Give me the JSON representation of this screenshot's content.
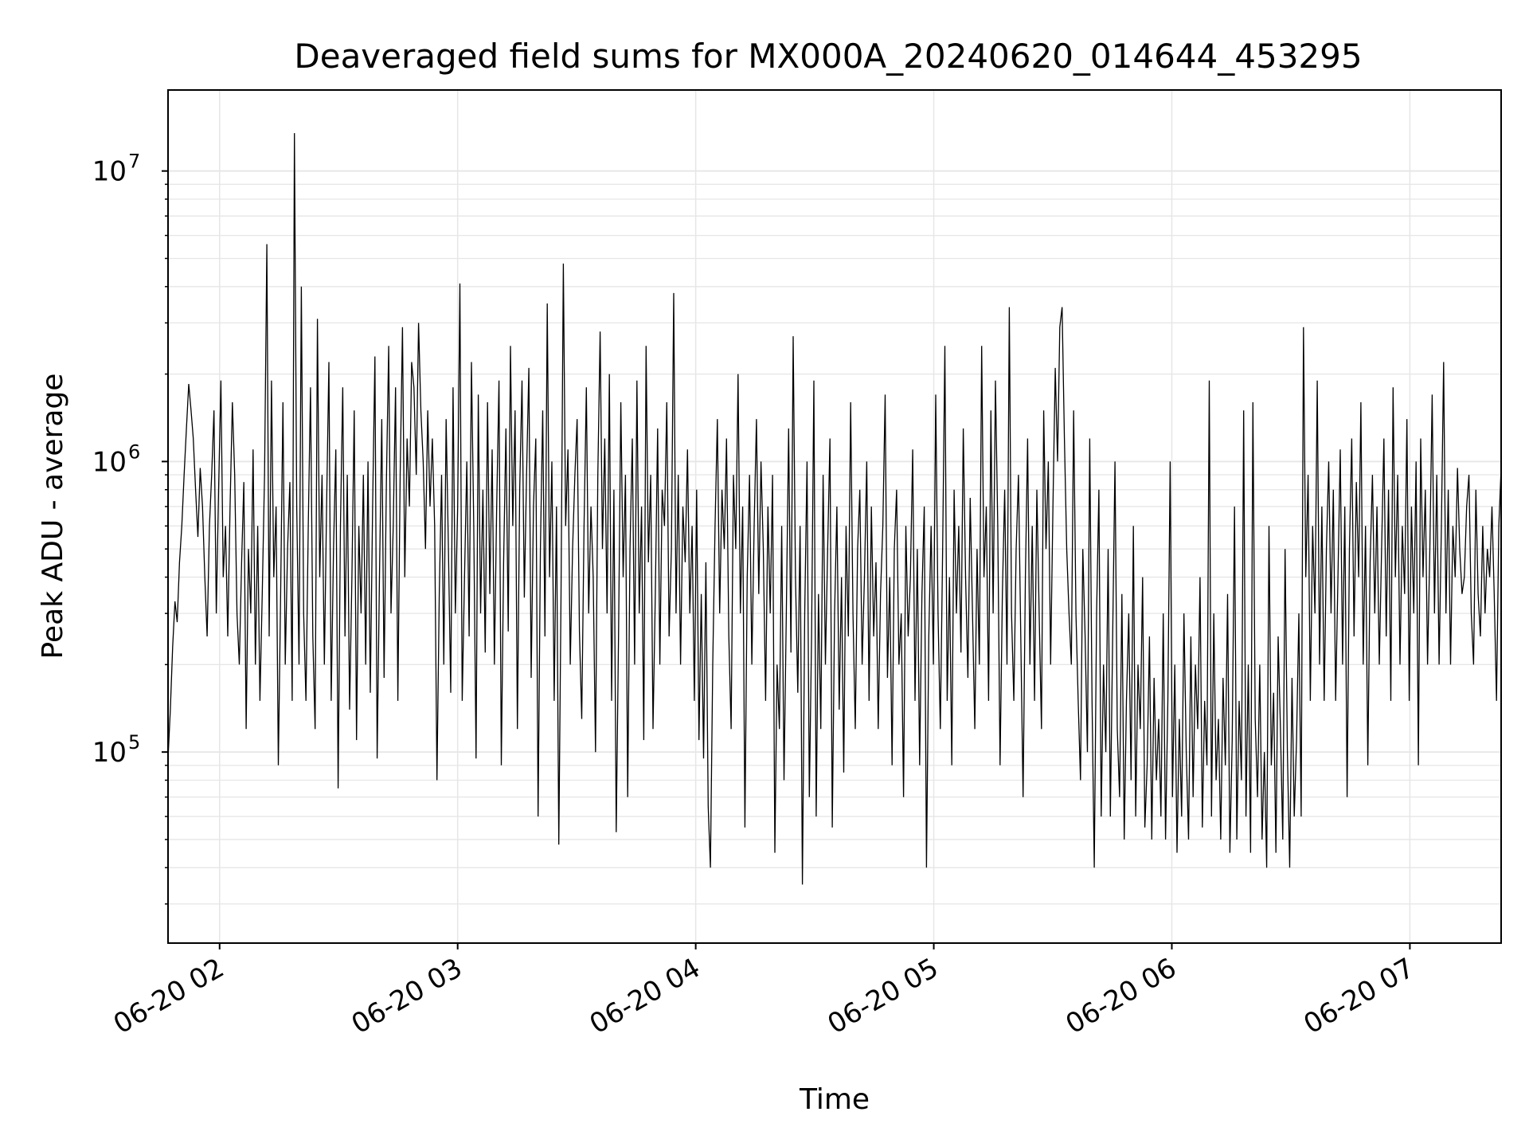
{
  "chart_data": {
    "type": "line",
    "title": "Deaveraged field sums for MX000A_20240620_014644_453295",
    "xlabel": "Time",
    "ylabel": "Peak ADU - average",
    "yscale": "log",
    "grid": true,
    "legend": "none",
    "xlim": [
      "2024-06-20 01:47",
      "2024-06-20 07:23"
    ],
    "ylim": [
      22000,
      19000000
    ],
    "x_ticks": [
      {
        "t": "2024-06-20 02:00",
        "label": "06-20 02"
      },
      {
        "t": "2024-06-20 03:00",
        "label": "06-20 03"
      },
      {
        "t": "2024-06-20 04:00",
        "label": "06-20 04"
      },
      {
        "t": "2024-06-20 05:00",
        "label": "06-20 05"
      },
      {
        "t": "2024-06-20 06:00",
        "label": "06-20 06"
      },
      {
        "t": "2024-06-20 07:00",
        "label": "06-20 07"
      }
    ],
    "y_ticks": [
      {
        "value": 100000,
        "base": "10",
        "exp": "5"
      },
      {
        "value": 1000000,
        "base": "10",
        "exp": "6"
      },
      {
        "value": 10000000,
        "base": "10",
        "exp": "7"
      }
    ],
    "series": [
      {
        "color": "#000000",
        "x_start": "2024-06-20 01:47",
        "x_end": "2024-06-20 07:23",
        "y": [
          95000,
          140000,
          230000,
          330000,
          280000,
          450000,
          600000,
          900000,
          1300000,
          1850000,
          1500000,
          1200000,
          800000,
          550000,
          950000,
          700000,
          400000,
          250000,
          600000,
          900000,
          1500000,
          300000,
          800000,
          1900000,
          400000,
          600000,
          250000,
          700000,
          1600000,
          900000,
          300000,
          200000,
          450000,
          850000,
          120000,
          500000,
          300000,
          1100000,
          200000,
          600000,
          150000,
          350000,
          900000,
          5600000,
          250000,
          1900000,
          400000,
          700000,
          90000,
          350000,
          1600000,
          200000,
          500000,
          850000,
          150000,
          13500000,
          700000,
          200000,
          4000000,
          300000,
          150000,
          600000,
          1800000,
          250000,
          120000,
          3100000,
          400000,
          900000,
          200000,
          700000,
          2200000,
          150000,
          500000,
          1100000,
          75000,
          600000,
          1800000,
          250000,
          900000,
          140000,
          400000,
          1500000,
          110000,
          600000,
          300000,
          900000,
          200000,
          1000000,
          160000,
          700000,
          2300000,
          95000,
          400000,
          1400000,
          180000,
          850000,
          2500000,
          300000,
          600000,
          1800000,
          150000,
          900000,
          2900000,
          400000,
          1200000,
          700000,
          2200000,
          1800000,
          900000,
          3000000,
          1500000,
          1000000,
          500000,
          1500000,
          700000,
          1200000,
          600000,
          80000,
          350000,
          900000,
          200000,
          1400000,
          500000,
          160000,
          1800000,
          300000,
          700000,
          4100000,
          150000,
          400000,
          1000000,
          250000,
          2200000,
          600000,
          95000,
          1700000,
          300000,
          800000,
          220000,
          1600000,
          350000,
          1100000,
          200000,
          700000,
          1900000,
          90000,
          450000,
          1300000,
          260000,
          2500000,
          600000,
          1500000,
          120000,
          800000,
          1900000,
          340000,
          900000,
          2100000,
          180000,
          700000,
          1200000,
          60000,
          500000,
          1500000,
          250000,
          3500000,
          400000,
          1000000,
          150000,
          700000,
          48000,
          350000,
          4800000,
          600000,
          1100000,
          200000,
          500000,
          900000,
          1400000,
          260000,
          130000,
          600000,
          1800000,
          300000,
          700000,
          400000,
          100000,
          900000,
          2800000,
          500000,
          1200000,
          300000,
          2000000,
          150000,
          800000,
          53000,
          250000,
          1600000,
          400000,
          900000,
          70000,
          500000,
          1200000,
          200000,
          1900000,
          300000,
          700000,
          110000,
          2500000,
          450000,
          900000,
          120000,
          350000,
          1300000,
          200000,
          800000,
          600000,
          1600000,
          250000,
          500000,
          3800000,
          300000,
          900000,
          200000,
          700000,
          450000,
          1100000,
          300000,
          600000,
          150000,
          800000,
          110000,
          350000,
          95000,
          450000,
          65000,
          40000,
          200000,
          600000,
          1400000,
          300000,
          800000,
          500000,
          1200000,
          250000,
          120000,
          900000,
          500000,
          2000000,
          300000,
          700000,
          55000,
          400000,
          900000,
          200000,
          600000,
          1400000,
          350000,
          1000000,
          500000,
          150000,
          700000,
          300000,
          900000,
          45000,
          200000,
          120000,
          600000,
          80000,
          300000,
          1300000,
          220000,
          2700000,
          400000,
          160000,
          600000,
          35000,
          300000,
          1000000,
          70000,
          250000,
          1900000,
          60000,
          350000,
          120000,
          900000,
          200000,
          500000,
          1200000,
          55000,
          300000,
          700000,
          140000,
          400000,
          85000,
          600000,
          250000,
          1600000,
          300000,
          120000,
          500000,
          800000,
          200000,
          400000,
          1000000,
          150000,
          700000,
          250000,
          450000,
          120000,
          350000,
          600000,
          1700000,
          180000,
          400000,
          90000,
          500000,
          800000,
          200000,
          300000,
          70000,
          600000,
          250000,
          400000,
          1100000,
          150000,
          500000,
          90000,
          350000,
          700000,
          40000,
          250000,
          600000,
          200000,
          1700000,
          300000,
          120000,
          500000,
          2500000,
          150000,
          400000,
          90000,
          800000,
          300000,
          600000,
          220000,
          1300000,
          400000,
          180000,
          750000,
          300000,
          120000,
          500000,
          200000,
          2500000,
          400000,
          700000,
          150000,
          1500000,
          300000,
          1900000,
          600000,
          90000,
          350000,
          800000,
          200000,
          3400000,
          300000,
          150000,
          500000,
          900000,
          250000,
          70000,
          400000,
          1200000,
          200000,
          600000,
          150000,
          800000,
          300000,
          120000,
          1500000,
          500000,
          1000000,
          200000,
          700000,
          2100000,
          1000000,
          2900000,
          3400000,
          1200000,
          500000,
          300000,
          200000,
          1500000,
          300000,
          150000,
          80000,
          500000,
          250000,
          100000,
          1200000,
          150000,
          40000,
          300000,
          800000,
          60000,
          200000,
          100000,
          500000,
          60000,
          250000,
          1000000,
          120000,
          70000,
          350000,
          50000,
          150000,
          300000,
          80000,
          600000,
          60000,
          200000,
          120000,
          400000,
          55000,
          90000,
          250000,
          50000,
          180000,
          80000,
          130000,
          60000,
          300000,
          50000,
          150000,
          1000000,
          70000,
          200000,
          45000,
          130000,
          60000,
          300000,
          100000,
          50000,
          250000,
          70000,
          200000,
          120000,
          400000,
          55000,
          150000,
          90000,
          1900000,
          60000,
          300000,
          80000,
          130000,
          50000,
          180000,
          90000,
          350000,
          45000,
          110000,
          700000,
          50000,
          150000,
          80000,
          1500000,
          60000,
          200000,
          45000,
          1600000,
          130000,
          70000,
          200000,
          50000,
          100000,
          40000,
          600000,
          90000,
          160000,
          45000,
          250000,
          120000,
          50000,
          500000,
          100000,
          40000,
          180000,
          60000,
          110000,
          300000,
          60000,
          2900000,
          400000,
          900000,
          150000,
          600000,
          300000,
          1900000,
          200000,
          700000,
          150000,
          500000,
          1000000,
          300000,
          800000,
          150000,
          400000,
          1100000,
          200000,
          700000,
          70000,
          500000,
          1200000,
          250000,
          850000,
          400000,
          1600000,
          200000,
          600000,
          90000,
          450000,
          900000,
          300000,
          700000,
          200000,
          500000,
          1200000,
          250000,
          800000,
          150000,
          1800000,
          400000,
          900000,
          200000,
          600000,
          350000,
          1400000,
          150000,
          700000,
          300000,
          1000000,
          90000,
          1200000,
          400000,
          800000,
          200000,
          500000,
          1700000,
          300000,
          900000,
          200000,
          600000,
          2200000,
          300000,
          800000,
          200000,
          600000,
          400000,
          950000,
          500000,
          350000,
          400000,
          700000,
          900000,
          300000,
          200000,
          800000,
          350000,
          250000,
          600000,
          300000,
          500000,
          400000,
          700000,
          350000,
          150000,
          600000,
          950000
        ]
      }
    ]
  }
}
